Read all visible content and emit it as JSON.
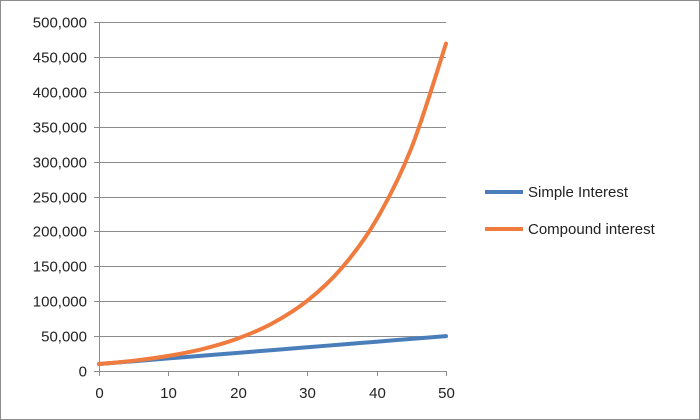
{
  "chart_data": {
    "type": "line",
    "xlim": [
      0,
      50
    ],
    "ylim": [
      0,
      500000
    ],
    "x_ticks": [
      0,
      10,
      20,
      30,
      40,
      50
    ],
    "y_ticks": [
      0,
      50000,
      100000,
      150000,
      200000,
      250000,
      300000,
      350000,
      400000,
      450000,
      500000
    ],
    "x_tick_labels": [
      "0",
      "10",
      "20",
      "30",
      "40",
      "50"
    ],
    "y_tick_labels": [
      "0",
      "50,000",
      "100,000",
      "150,000",
      "200,000",
      "250,000",
      "300,000",
      "350,000",
      "400,000",
      "450,000",
      "500,000"
    ],
    "grid": "horizontal",
    "legend_position": "right",
    "x": [
      0,
      5,
      10,
      15,
      20,
      25,
      30,
      35,
      40,
      45,
      50
    ],
    "series": [
      {
        "name": "Simple Interest",
        "color": "#4a7ebb",
        "values": [
          10000,
          14000,
          18000,
          22000,
          26000,
          30000,
          34000,
          38000,
          42000,
          46000,
          50000
        ]
      },
      {
        "name": "Compound interest",
        "color": "#f07b3f",
        "values": [
          10000,
          14700,
          21600,
          31700,
          46600,
          68500,
          100600,
          147800,
          217200,
          319200,
          469000
        ]
      }
    ]
  }
}
